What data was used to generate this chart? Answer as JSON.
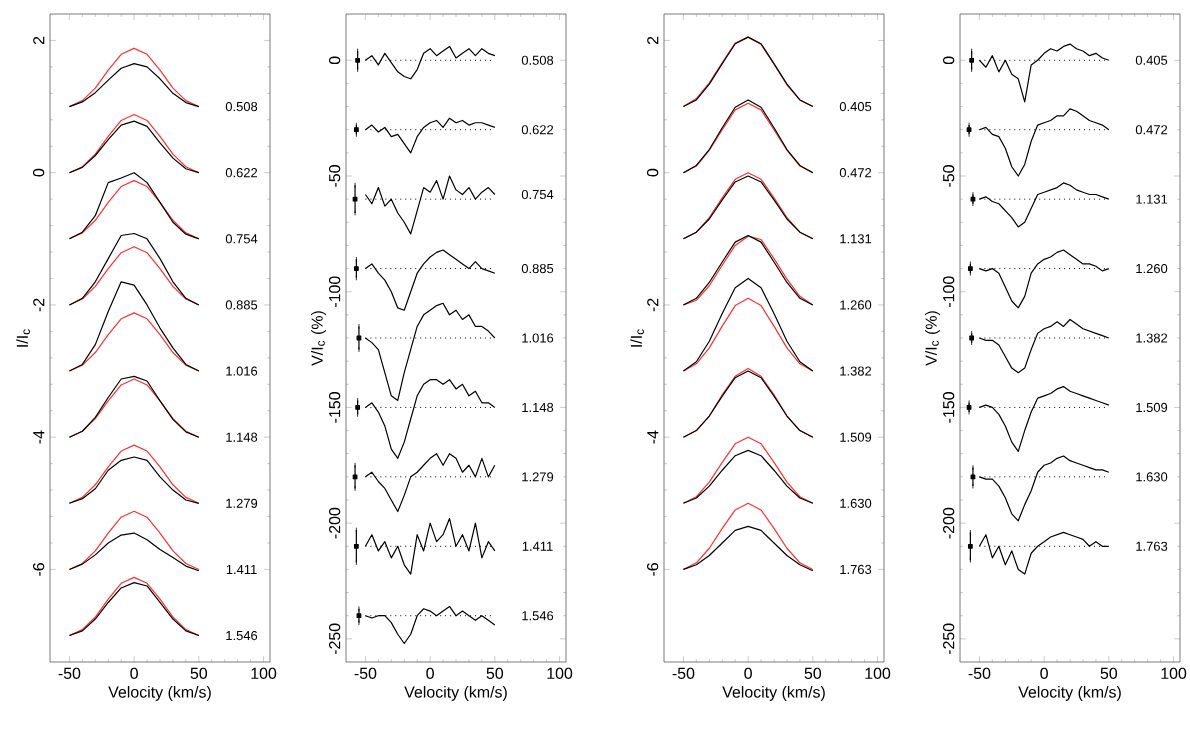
{
  "chart_data": [
    {
      "type": "line",
      "xlabel": "Velocity (km/s)",
      "ylabel": "I/I$_{c}$",
      "marker": "none",
      "xlim": [
        -65,
        105
      ],
      "ylim": [
        -7.4,
        2.4
      ],
      "xticks": [
        -50,
        0,
        50,
        100
      ],
      "yticks": [
        -6,
        -4,
        -2,
        0,
        2
      ],
      "x": [
        -50,
        -40,
        -30,
        -20,
        -10,
        0,
        10,
        20,
        30,
        40,
        50
      ],
      "series": [
        {
          "color": "#ff3030",
          "values": [
            1,
            1.09,
            1.28,
            1.55,
            1.79,
            1.88,
            1.79,
            1.55,
            1.28,
            1.09,
            1
          ]
        },
        {
          "color": "#000000",
          "values": [
            1,
            1.07,
            1.21,
            1.4,
            1.58,
            1.65,
            1.6,
            1.42,
            1.2,
            1.06,
            1
          ]
        },
        {
          "color": "#ff3030",
          "values": [
            0,
            0.09,
            0.28,
            0.55,
            0.79,
            0.88,
            0.79,
            0.55,
            0.28,
            0.09,
            0
          ]
        },
        {
          "color": "#000000",
          "values": [
            0,
            0.08,
            0.26,
            0.5,
            0.72,
            0.78,
            0.7,
            0.45,
            0.22,
            0.06,
            0
          ]
        },
        {
          "color": "#ff3030",
          "values": [
            -1,
            -0.91,
            -0.72,
            -0.45,
            -0.21,
            -0.12,
            -0.21,
            -0.45,
            -0.72,
            -0.91,
            -1
          ]
        },
        {
          "color": "#000000",
          "values": [
            -1,
            -0.9,
            -0.65,
            -0.15,
            -0.08,
            0.0,
            -0.15,
            -0.45,
            -0.75,
            -0.93,
            -1
          ]
        },
        {
          "color": "#ff3030",
          "values": [
            -2,
            -1.91,
            -1.72,
            -1.45,
            -1.21,
            -1.12,
            -1.21,
            -1.45,
            -1.72,
            -1.91,
            -2
          ]
        },
        {
          "color": "#000000",
          "values": [
            -2,
            -1.9,
            -1.65,
            -1.3,
            -0.95,
            -0.92,
            -1.0,
            -1.3,
            -1.65,
            -1.9,
            -2
          ]
        },
        {
          "color": "#ff3030",
          "values": [
            -3,
            -2.91,
            -2.72,
            -2.45,
            -2.21,
            -2.12,
            -2.21,
            -2.45,
            -2.72,
            -2.91,
            -3
          ]
        },
        {
          "color": "#000000",
          "values": [
            -3,
            -2.9,
            -2.6,
            -2.1,
            -1.65,
            -1.7,
            -2.0,
            -2.35,
            -2.65,
            -2.9,
            -3
          ]
        },
        {
          "color": "#ff3030",
          "values": [
            -4,
            -3.91,
            -3.72,
            -3.45,
            -3.21,
            -3.12,
            -3.21,
            -3.45,
            -3.72,
            -3.91,
            -4
          ]
        },
        {
          "color": "#000000",
          "values": [
            -4,
            -3.91,
            -3.7,
            -3.4,
            -3.12,
            -3.08,
            -3.15,
            -3.45,
            -3.73,
            -3.92,
            -4
          ]
        },
        {
          "color": "#ff3030",
          "values": [
            -5,
            -4.91,
            -4.72,
            -4.45,
            -4.21,
            -4.12,
            -4.21,
            -4.45,
            -4.72,
            -4.91,
            -5
          ]
        },
        {
          "color": "#000000",
          "values": [
            -5,
            -4.93,
            -4.78,
            -4.5,
            -4.35,
            -4.3,
            -4.35,
            -4.6,
            -4.8,
            -4.95,
            -5
          ]
        },
        {
          "color": "#ff3030",
          "values": [
            -6,
            -5.91,
            -5.72,
            -5.45,
            -5.21,
            -5.12,
            -5.21,
            -5.45,
            -5.72,
            -5.91,
            -6
          ]
        },
        {
          "color": "#000000",
          "values": [
            -6,
            -5.92,
            -5.78,
            -5.6,
            -5.48,
            -5.45,
            -5.55,
            -5.7,
            -5.82,
            -5.95,
            -6.02
          ]
        },
        {
          "color": "#ff3030",
          "values": [
            -7,
            -6.91,
            -6.72,
            -6.45,
            -6.21,
            -6.12,
            -6.21,
            -6.45,
            -6.72,
            -6.91,
            -7
          ]
        },
        {
          "color": "#000000",
          "values": [
            -7,
            -6.93,
            -6.75,
            -6.5,
            -6.28,
            -6.2,
            -6.25,
            -6.5,
            -6.75,
            -6.93,
            -7
          ]
        }
      ],
      "annotations": [
        "0.508",
        "0.622",
        "0.754",
        "0.885",
        "1.016",
        "1.148",
        "1.279",
        "1.411",
        "1.546"
      ]
    },
    {
      "type": "line",
      "xlabel": "Velocity (km/s)",
      "ylabel": "V/I$_{c}$ (%)",
      "marker": "none",
      "xlim": [
        -65,
        105
      ],
      "ylim": [
        -260,
        20
      ],
      "xticks": [
        -50,
        0,
        50,
        100
      ],
      "yticks": [
        -250,
        -200,
        -150,
        -100,
        -50,
        0
      ],
      "x": [
        -50,
        -45,
        -40,
        -35,
        -30,
        -25,
        -20,
        -15,
        -10,
        -5,
        0,
        5,
        10,
        15,
        20,
        25,
        30,
        35,
        40,
        45,
        50
      ],
      "series": [
        {
          "color": "#000000",
          "values": [
            0,
            2,
            -2,
            3,
            -1,
            -5,
            -7,
            -8,
            -4,
            3,
            5,
            2,
            4,
            6,
            1,
            3,
            5,
            2,
            5,
            3,
            2
          ]
        },
        {
          "color": "#000000",
          "values": [
            -30,
            -28,
            -31,
            -29,
            -33,
            -32,
            -36,
            -40,
            -33,
            -29,
            -27,
            -26,
            -29,
            -25,
            -27,
            -26,
            -28,
            -27,
            -27,
            -28,
            -29
          ]
        },
        {
          "color": "#000000",
          "values": [
            -58,
            -62,
            -55,
            -63,
            -60,
            -66,
            -70,
            -75,
            -65,
            -55,
            -57,
            -52,
            -60,
            -50,
            -56,
            -58,
            -55,
            -60,
            -57,
            -55,
            -58
          ]
        },
        {
          "color": "#000000",
          "values": [
            -90,
            -88,
            -92,
            -95,
            -100,
            -107,
            -108,
            -100,
            -92,
            -88,
            -85,
            -83,
            -82,
            -84,
            -86,
            -88,
            -90,
            -87,
            -90,
            -91,
            -92
          ]
        },
        {
          "color": "#000000",
          "values": [
            -120,
            -122,
            -125,
            -135,
            -145,
            -147,
            -135,
            -125,
            -115,
            -110,
            -108,
            -106,
            -105,
            -110,
            -108,
            -112,
            -110,
            -115,
            -115,
            -117,
            -120
          ]
        },
        {
          "color": "#000000",
          "values": [
            -150,
            -148,
            -152,
            -158,
            -168,
            -172,
            -165,
            -155,
            -145,
            -140,
            -138,
            -138,
            -140,
            -138,
            -142,
            -140,
            -145,
            -143,
            -148,
            -148,
            -150
          ]
        },
        {
          "color": "#000000",
          "values": [
            -180,
            -178,
            -182,
            -185,
            -190,
            -195,
            -188,
            -180,
            -178,
            -175,
            -172,
            -170,
            -175,
            -170,
            -172,
            -178,
            -175,
            -180,
            -172,
            -180,
            -175
          ]
        },
        {
          "color": "#000000",
          "values": [
            -210,
            -205,
            -212,
            -208,
            -215,
            -210,
            -218,
            -222,
            -205,
            -212,
            -200,
            -208,
            -205,
            -198,
            -210,
            -205,
            -212,
            -200,
            -215,
            -208,
            -212
          ]
        },
        {
          "color": "#000000",
          "values": [
            -240,
            -241,
            -240,
            -240,
            -243,
            -248,
            -252,
            -248,
            -240,
            -237,
            -238,
            -240,
            -238,
            -236,
            -240,
            -238,
            -240,
            -242,
            -240,
            -242,
            -244
          ]
        },
        {
          "type": "scatter",
          "marker": "square",
          "color": "#000000",
          "x": [
            -56,
            -57,
            -58,
            -57,
            -55,
            -56,
            -58,
            -57,
            -55
          ],
          "values": [
            0,
            -30,
            -60,
            -90,
            -120,
            -150,
            -180,
            -210,
            -240
          ],
          "errors": [
            4,
            2,
            6,
            4,
            5,
            3,
            5,
            7,
            3
          ]
        }
      ],
      "ref_lines": [
        {
          "axis": "y",
          "value": 0,
          "line_style": "dotted"
        },
        {
          "axis": "y",
          "value": -30,
          "line_style": "dotted"
        },
        {
          "axis": "y",
          "value": -60,
          "line_style": "dotted"
        },
        {
          "axis": "y",
          "value": -90,
          "line_style": "dotted"
        },
        {
          "axis": "y",
          "value": -120,
          "line_style": "dotted"
        },
        {
          "axis": "y",
          "value": -150,
          "line_style": "dotted"
        },
        {
          "axis": "y",
          "value": -180,
          "line_style": "dotted"
        },
        {
          "axis": "y",
          "value": -210,
          "line_style": "dotted"
        },
        {
          "axis": "y",
          "value": -240,
          "line_style": "dotted"
        }
      ],
      "annotations": [
        "0.508",
        "0.622",
        "0.754",
        "0.885",
        "1.016",
        "1.148",
        "1.279",
        "1.411",
        "1.546"
      ]
    },
    {
      "type": "line",
      "xlabel": "Velocity (km/s)",
      "ylabel": "I/I$_{c}$",
      "marker": "none",
      "xlim": [
        -65,
        105
      ],
      "ylim": [
        -7.4,
        2.4
      ],
      "xticks": [
        -50,
        0,
        50,
        100
      ],
      "yticks": [
        -6,
        -4,
        -2,
        0,
        2
      ],
      "x": [
        -50,
        -40,
        -30,
        -20,
        -10,
        0,
        10,
        20,
        30,
        40,
        50
      ],
      "series": [
        {
          "color": "#ff3030",
          "values": [
            1,
            1.12,
            1.36,
            1.66,
            1.96,
            2.05,
            1.94,
            1.64,
            1.33,
            1.1,
            1
          ]
        },
        {
          "color": "#000000",
          "values": [
            1,
            1.1,
            1.34,
            1.65,
            1.95,
            2.05,
            1.95,
            1.65,
            1.34,
            1.1,
            1
          ]
        },
        {
          "color": "#ff3030",
          "values": [
            0,
            0.1,
            0.34,
            0.65,
            0.95,
            1.05,
            0.95,
            0.65,
            0.34,
            0.1,
            0
          ]
        },
        {
          "color": "#000000",
          "values": [
            0,
            0.11,
            0.35,
            0.68,
            0.99,
            1.1,
            0.99,
            0.68,
            0.35,
            0.11,
            0
          ]
        },
        {
          "color": "#ff3030",
          "values": [
            -1,
            -0.9,
            -0.68,
            -0.38,
            -0.1,
            0,
            -0.1,
            -0.38,
            -0.68,
            -0.9,
            -1
          ]
        },
        {
          "color": "#000000",
          "values": [
            -1,
            -0.9,
            -0.7,
            -0.41,
            -0.14,
            -0.05,
            -0.14,
            -0.41,
            -0.7,
            -0.9,
            -1
          ]
        },
        {
          "color": "#ff3030",
          "values": [
            -2,
            -1.93,
            -1.71,
            -1.4,
            -1.1,
            -0.96,
            -1.01,
            -1.3,
            -1.61,
            -1.87,
            -2
          ]
        },
        {
          "color": "#000000",
          "values": [
            -2,
            -1.9,
            -1.66,
            -1.35,
            -1.05,
            -0.95,
            -1.05,
            -1.35,
            -1.66,
            -1.9,
            -2
          ]
        },
        {
          "color": "#ff3030",
          "values": [
            -3,
            -2.89,
            -2.65,
            -2.32,
            -2.01,
            -1.9,
            -2.01,
            -2.32,
            -2.65,
            -2.89,
            -3
          ]
        },
        {
          "color": "#000000",
          "values": [
            -3,
            -2.86,
            -2.55,
            -2.13,
            -1.74,
            -1.6,
            -1.74,
            -2.13,
            -2.55,
            -2.86,
            -3
          ]
        },
        {
          "color": "#ff3030",
          "values": [
            -4,
            -3.9,
            -3.68,
            -3.36,
            -3.08,
            -2.96,
            -3.08,
            -3.36,
            -3.68,
            -3.9,
            -4
          ]
        },
        {
          "color": "#000000",
          "values": [
            -4,
            -3.9,
            -3.68,
            -3.38,
            -3.1,
            -3.0,
            -3.1,
            -3.38,
            -3.68,
            -3.9,
            -4
          ]
        },
        {
          "color": "#ff3030",
          "values": [
            -5,
            -4.9,
            -4.68,
            -4.38,
            -4.1,
            -4.0,
            -4.1,
            -4.38,
            -4.68,
            -4.9,
            -5
          ]
        },
        {
          "color": "#000000",
          "values": [
            -5,
            -4.92,
            -4.74,
            -4.5,
            -4.28,
            -4.2,
            -4.28,
            -4.5,
            -4.74,
            -4.92,
            -5
          ]
        },
        {
          "color": "#ff3030",
          "values": [
            -6,
            -5.9,
            -5.68,
            -5.38,
            -5.1,
            -5.0,
            -5.1,
            -5.38,
            -5.68,
            -5.9,
            -6
          ]
        },
        {
          "color": "#000000",
          "values": [
            -6,
            -5.93,
            -5.79,
            -5.6,
            -5.41,
            -5.35,
            -5.41,
            -5.6,
            -5.79,
            -5.93,
            -6.02
          ]
        }
      ],
      "annotations": [
        "0.405",
        "0.472",
        "1.131",
        "1.260",
        "1.382",
        "1.509",
        "1.630",
        "1.763"
      ]
    },
    {
      "type": "line",
      "xlabel": "Velocity (km/s)",
      "ylabel": "V/I$_{c}$ (%)",
      "marker": "none",
      "xlim": [
        -65,
        105
      ],
      "ylim": [
        -260,
        20
      ],
      "xticks": [
        -50,
        0,
        50,
        100
      ],
      "yticks": [
        -250,
        -200,
        -150,
        -100,
        -50,
        0
      ],
      "x": [
        -50,
        -45,
        -40,
        -35,
        -30,
        -25,
        -20,
        -15,
        -10,
        -5,
        0,
        5,
        10,
        15,
        20,
        25,
        30,
        35,
        40,
        45,
        50
      ],
      "series": [
        {
          "color": "#000000",
          "values": [
            0,
            -3,
            2,
            -5,
            0,
            -6,
            -8,
            -18,
            -2,
            0,
            3,
            5,
            4,
            6,
            7,
            5,
            4,
            2,
            3,
            1,
            0
          ]
        },
        {
          "color": "#000000",
          "values": [
            -30,
            -29,
            -32,
            -33,
            -38,
            -46,
            -50,
            -45,
            -35,
            -28,
            -27,
            -26,
            -24,
            -24,
            -21,
            -22,
            -24,
            -26,
            -27,
            -28,
            -30
          ]
        },
        {
          "color": "#000000",
          "values": [
            -60,
            -59,
            -61,
            -62,
            -65,
            -68,
            -72,
            -70,
            -64,
            -58,
            -57,
            -56,
            -55,
            -53,
            -54,
            -56,
            -57,
            -58,
            -58,
            -59,
            -60
          ]
        },
        {
          "color": "#000000",
          "values": [
            -90,
            -91,
            -90,
            -92,
            -98,
            -104,
            -107,
            -102,
            -92,
            -88,
            -86,
            -85,
            -83,
            -82,
            -84,
            -86,
            -88,
            -88,
            -89,
            -91,
            -90
          ]
        },
        {
          "color": "#000000",
          "values": [
            -120,
            -121,
            -121,
            -123,
            -128,
            -133,
            -135,
            -133,
            -125,
            -118,
            -116,
            -115,
            -113,
            -115,
            -112,
            -114,
            -116,
            -117,
            -118,
            -119,
            -120
          ]
        },
        {
          "color": "#000000",
          "values": [
            -150,
            -149,
            -150,
            -153,
            -158,
            -165,
            -169,
            -160,
            -152,
            -146,
            -145,
            -144,
            -142,
            -141,
            -143,
            -144,
            -145,
            -146,
            -147,
            -148,
            -149
          ]
        },
        {
          "color": "#000000",
          "values": [
            -180,
            -181,
            -181,
            -184,
            -189,
            -196,
            -199,
            -192,
            -186,
            -178,
            -175,
            -174,
            -172,
            -171,
            -173,
            -174,
            -175,
            -176,
            -177,
            -177,
            -178
          ]
        },
        {
          "color": "#000000",
          "values": [
            -210,
            -205,
            -215,
            -210,
            -218,
            -212,
            -220,
            -222,
            -213,
            -210,
            -208,
            -206,
            -205,
            -204,
            -205,
            -206,
            -207,
            -210,
            -208,
            -210,
            -210
          ]
        },
        {
          "type": "scatter",
          "marker": "square",
          "color": "#000000",
          "x": [
            -56,
            -58,
            -55,
            -57,
            -56,
            -58,
            -55,
            -57
          ],
          "values": [
            0,
            -30,
            -60,
            -90,
            -120,
            -150,
            -180,
            -210
          ],
          "errors": [
            4,
            2,
            2,
            2,
            2,
            2,
            4,
            6
          ]
        }
      ],
      "ref_lines": [
        {
          "axis": "y",
          "value": 0,
          "line_style": "dotted"
        },
        {
          "axis": "y",
          "value": -30,
          "line_style": "dotted"
        },
        {
          "axis": "y",
          "value": -60,
          "line_style": "dotted"
        },
        {
          "axis": "y",
          "value": -90,
          "line_style": "dotted"
        },
        {
          "axis": "y",
          "value": -120,
          "line_style": "dotted"
        },
        {
          "axis": "y",
          "value": -150,
          "line_style": "dotted"
        },
        {
          "axis": "y",
          "value": -180,
          "line_style": "dotted"
        },
        {
          "axis": "y",
          "value": -210,
          "line_style": "dotted"
        }
      ],
      "annotations": [
        "0.405",
        "0.472",
        "1.131",
        "1.260",
        "1.382",
        "1.509",
        "1.630",
        "1.763"
      ]
    }
  ]
}
